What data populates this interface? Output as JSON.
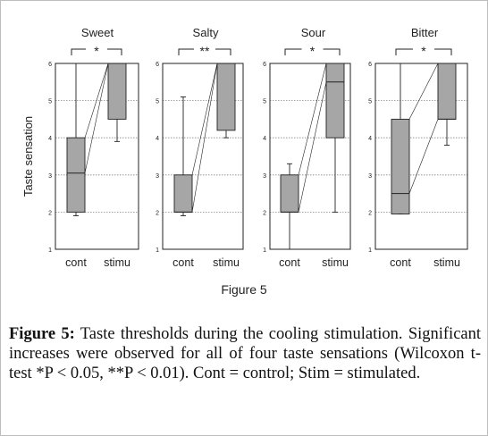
{
  "figure_label": "Figure 5",
  "caption": {
    "lead": "Figure 5:",
    "body": " Taste thresholds during the cooling stimulation. Significant increases were observed for all of four taste sensations (Wilcoxon t-test *P < 0.05, **P < 0.01). Cont = control; Stim = stimulated."
  },
  "colors": {
    "box_fill": "#a6a6a6",
    "stroke": "#222222",
    "grid": "#888888"
  },
  "chart_data": [
    {
      "type": "box",
      "title": "Sweet",
      "ylabel": "Taste sensation",
      "categories": [
        "cont",
        "stimu"
      ],
      "ylim": [
        1,
        6
      ],
      "yticks": [
        1,
        2,
        3,
        4,
        5,
        6
      ],
      "grid": true,
      "significance": "*",
      "boxes": [
        {
          "whisker_low": 1.9,
          "q1": 2.0,
          "median": 3.05,
          "q3": 4.0,
          "whisker_high": 6.0
        },
        {
          "whisker_low": 3.9,
          "q1": 4.5,
          "median": 6.0,
          "q3": 6.0,
          "whisker_high": 6.0
        }
      ]
    },
    {
      "type": "box",
      "title": "Salty",
      "ylabel": "",
      "categories": [
        "cont",
        "stimu"
      ],
      "ylim": [
        1,
        6
      ],
      "yticks": [
        1,
        2,
        3,
        4,
        5,
        6
      ],
      "grid": true,
      "significance": "**",
      "boxes": [
        {
          "whisker_low": 1.9,
          "q1": 2.0,
          "median": 2.0,
          "q3": 3.0,
          "whisker_high": 5.1
        },
        {
          "whisker_low": 4.0,
          "q1": 4.2,
          "median": 6.0,
          "q3": 6.0,
          "whisker_high": 6.0
        }
      ]
    },
    {
      "type": "box",
      "title": "Sour",
      "ylabel": "",
      "categories": [
        "cont",
        "stimu"
      ],
      "ylim": [
        1,
        6
      ],
      "yticks": [
        1,
        2,
        3,
        4,
        5,
        6
      ],
      "grid": true,
      "significance": "*",
      "boxes": [
        {
          "whisker_low": 1.0,
          "q1": 2.0,
          "median": 2.0,
          "q3": 3.0,
          "whisker_high": 3.3
        },
        {
          "whisker_low": 2.0,
          "q1": 4.0,
          "median": 5.5,
          "q3": 6.0,
          "whisker_high": 6.0
        }
      ]
    },
    {
      "type": "box",
      "title": "Bitter",
      "ylabel": "",
      "categories": [
        "cont",
        "stimu"
      ],
      "ylim": [
        1,
        6
      ],
      "yticks": [
        1,
        2,
        3,
        4,
        5,
        6
      ],
      "grid": true,
      "significance": "*",
      "boxes": [
        {
          "whisker_low": 1.95,
          "q1": 1.95,
          "median": 2.5,
          "q3": 4.5,
          "whisker_high": 6.0
        },
        {
          "whisker_low": 3.8,
          "q1": 4.5,
          "median": 4.5,
          "q3": 6.0,
          "whisker_high": 6.0
        }
      ]
    }
  ]
}
